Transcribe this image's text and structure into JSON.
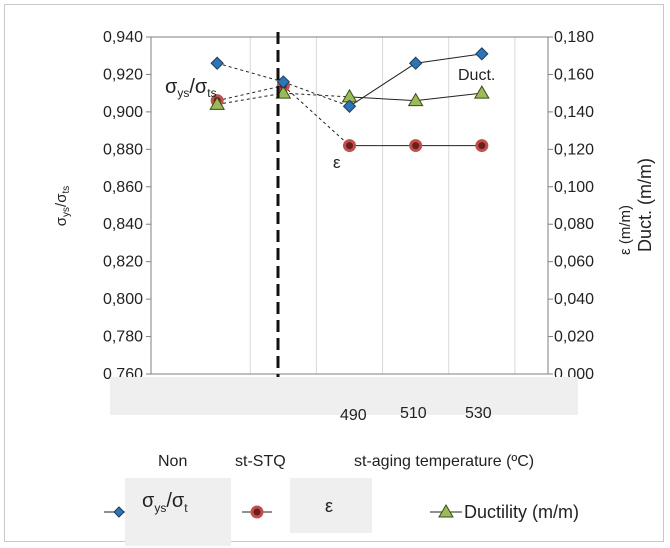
{
  "chart_data": {
    "type": "line",
    "categories": [
      "Non",
      "st-STQ",
      "490",
      "510",
      "530"
    ],
    "x_axis_caption": "st-aging temperature (ºC)",
    "y_left": {
      "label_main": "σ",
      "label_sub1": "ys",
      "label_sep": "/σ",
      "label_sub2": "ts",
      "ylim": [
        0.76,
        0.94
      ],
      "ticks": [
        "0,760",
        "0,780",
        "0,800",
        "0,820",
        "0,840",
        "0,860",
        "0,880",
        "0,900",
        "0,920",
        "0,940"
      ]
    },
    "y_right": {
      "label": "ε (m/m)",
      "label2": "Duct. (m/m)",
      "ylim": [
        0.0,
        0.18
      ],
      "ticks": [
        "0,000",
        "0,020",
        "0,040",
        "0,060",
        "0,080",
        "0,100",
        "0,120",
        "0,140",
        "0,160",
        "0,180"
      ]
    },
    "series": [
      {
        "name": "σys/σt",
        "axis": "left",
        "values": [
          0.926,
          0.916,
          0.903,
          0.926,
          0.931
        ],
        "color": "#2e75b6"
      },
      {
        "name": "ε",
        "axis": "right",
        "values": [
          0.146,
          0.154,
          0.122,
          0.122,
          0.122
        ],
        "color": "#c0504d"
      },
      {
        "name": "Ductility (m/m)",
        "axis": "right",
        "values": [
          0.144,
          0.15,
          0.148,
          0.146,
          0.15
        ],
        "color": "#9bbb59"
      }
    ],
    "annotations": {
      "ratio_main": "σ",
      "ratio_sub1": "ys",
      "ratio_sep": "/σ",
      "ratio_sub2": "ts",
      "epsilon": "ε",
      "duct": "Duct."
    },
    "grid": "vertical"
  },
  "legend": {
    "ratio_main": "σ",
    "ratio_sub": "ys",
    "ratio_sep": "/σ",
    "ratio_sub2": "t",
    "epsilon": "ε",
    "ductility": "Ductility (m/m)"
  }
}
